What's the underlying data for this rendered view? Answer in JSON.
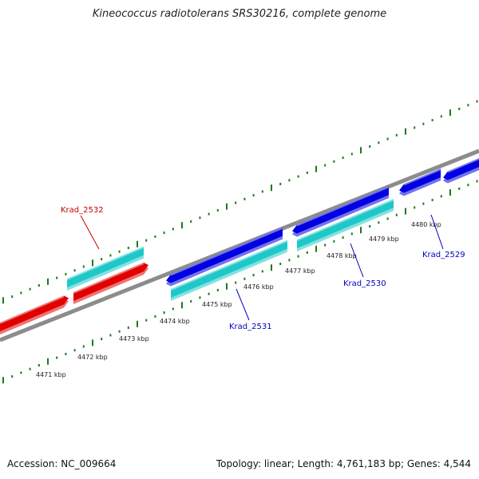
{
  "title": "Kineococcus radiotolerans SRS30216, complete genome",
  "footer": {
    "accession": "Accession: NC_009664",
    "summary": "Topology: linear; Length: 4,761,183 bp; Genes: 4,544"
  },
  "colors": {
    "backbone": "#8c8c8c",
    "ticks": "#1a7a1a",
    "gene_forward": "#0000e0",
    "gene_reverse": "#e00000",
    "cds": "#1ec8c8",
    "label_forward": "#0000c0",
    "label_reverse": "#cc0000"
  },
  "scale_labels": [
    {
      "kbp": 4471,
      "text": "4471 kbp"
    },
    {
      "kbp": 4472,
      "text": "4472 kbp"
    },
    {
      "kbp": 4473,
      "text": "4473 kbp"
    },
    {
      "kbp": 4474,
      "text": "4474 kbp"
    },
    {
      "kbp": 4475,
      "text": "4475 kbp"
    },
    {
      "kbp": 4476,
      "text": "4476 kbp"
    },
    {
      "kbp": 4477,
      "text": "4477 kbp"
    },
    {
      "kbp": 4478,
      "text": "4478 kbp"
    },
    {
      "kbp": 4479,
      "text": "4479 kbp"
    },
    {
      "kbp": 4480,
      "text": "4480 kbp"
    }
  ],
  "genes": [
    {
      "name": "Krad_2532",
      "strand": "reverse"
    },
    {
      "name": "Krad_2531",
      "strand": "forward"
    },
    {
      "name": "Krad_2530",
      "strand": "forward"
    },
    {
      "name": "Krad_2529",
      "strand": "forward"
    }
  ]
}
